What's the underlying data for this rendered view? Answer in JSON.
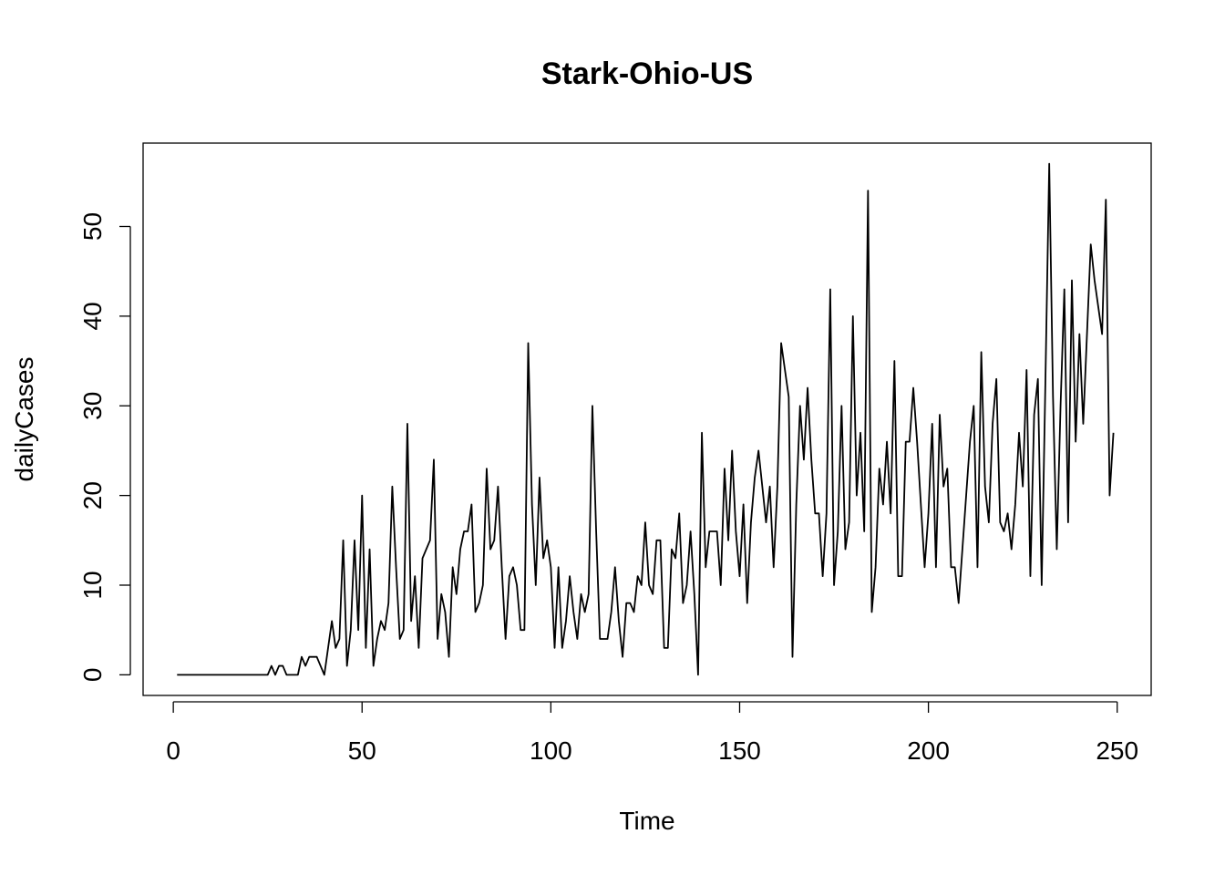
{
  "chart_data": {
    "type": "line",
    "title": "Stark-Ohio-US",
    "xlabel": "Time",
    "ylabel": "dailyCases",
    "xlim": [
      -8,
      259
    ],
    "ylim": [
      -2.3,
      59.3
    ],
    "xticks": [
      0,
      50,
      100,
      150,
      200,
      250
    ],
    "yticks": [
      0,
      10,
      20,
      30,
      40,
      50
    ],
    "xtick_labels": [
      "0",
      "50",
      "100",
      "150",
      "200",
      "250"
    ],
    "ytick_labels": [
      "0",
      "10",
      "20",
      "30",
      "40",
      "50"
    ],
    "grid": false,
    "legend": null,
    "series": [
      {
        "name": "dailyCases",
        "color": "#000000",
        "x_start": 1,
        "values": [
          0,
          0,
          0,
          0,
          0,
          0,
          0,
          0,
          0,
          0,
          0,
          0,
          0,
          0,
          0,
          0,
          0,
          0,
          0,
          0,
          0,
          0,
          0,
          0,
          0,
          1,
          0,
          1,
          1,
          0,
          0,
          0,
          0,
          2,
          1,
          2,
          2,
          2,
          1,
          0,
          3,
          6,
          3,
          4,
          15,
          1,
          5,
          15,
          5,
          20,
          3,
          14,
          1,
          4,
          6,
          5,
          8,
          21,
          12,
          4,
          5,
          28,
          6,
          11,
          3,
          13,
          14,
          15,
          24,
          4,
          9,
          7,
          2,
          12,
          9,
          14,
          16,
          16,
          19,
          7,
          8,
          10,
          23,
          14,
          15,
          21,
          12,
          4,
          11,
          12,
          10,
          5,
          5,
          37,
          19,
          10,
          22,
          13,
          15,
          12,
          3,
          12,
          3,
          6,
          11,
          7,
          4,
          9,
          7,
          9,
          30,
          16,
          4,
          4,
          4,
          7,
          12,
          6,
          2,
          8,
          8,
          7,
          11,
          10,
          17,
          10,
          9,
          15,
          15,
          3,
          3,
          14,
          13,
          18,
          8,
          10,
          16,
          9,
          0,
          27,
          12,
          16,
          16,
          16,
          10,
          23,
          15,
          25,
          16,
          11,
          19,
          8,
          17,
          22,
          25,
          21,
          17,
          21,
          12,
          21,
          37,
          34,
          31,
          2,
          19,
          30,
          24,
          32,
          24,
          18,
          18,
          11,
          18,
          43,
          10,
          16,
          30,
          14,
          17,
          40,
          20,
          27,
          16,
          54,
          7,
          12,
          23,
          19,
          26,
          18,
          35,
          11,
          11,
          26,
          26,
          32,
          26,
          19,
          12,
          18,
          28,
          12,
          29,
          21,
          23,
          12,
          12,
          8,
          14,
          20,
          26,
          30,
          12,
          36,
          21,
          17,
          28,
          33,
          17,
          16,
          18,
          14,
          19,
          27,
          21,
          34,
          11,
          29,
          33,
          10,
          33,
          57,
          31,
          14,
          30,
          43,
          17,
          44,
          26,
          38,
          28,
          38,
          48,
          44,
          41,
          38,
          53,
          20,
          27
        ]
      }
    ]
  }
}
